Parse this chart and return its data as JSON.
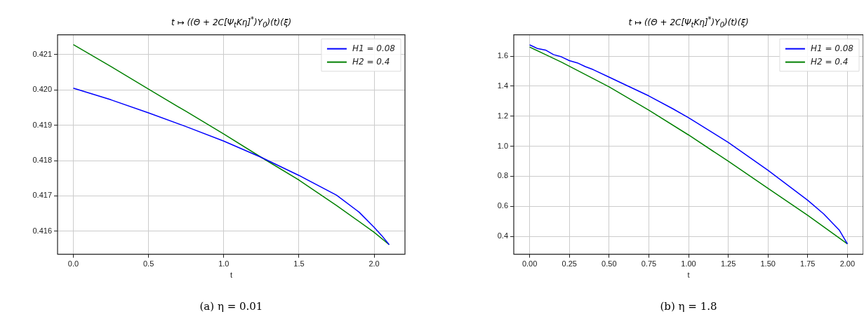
{
  "chart_data": [
    {
      "type": "line",
      "title": "t ↦ ((Θ + 2C[Ψ$_{t}$Kη]$^{*}$)Y$_{0}$)(t)(ξ)",
      "xlabel": "t",
      "annotations": [
        "(a) η = 0.01"
      ],
      "series": [
        {
          "name": "H1 = 0.08",
          "color": "#0000ff",
          "x": [
            0,
            0.25,
            0.5,
            0.75,
            1.0,
            1.25,
            1.5,
            1.75,
            1.9,
            2.0,
            2.05,
            2.1
          ],
          "values": [
            0.42005,
            0.41972,
            0.41935,
            0.41896,
            0.41855,
            0.41809,
            0.41758,
            0.41702,
            0.41654,
            0.41611,
            0.41588,
            0.41562
          ]
        },
        {
          "name": "H2 = 0.4",
          "color": "#008000",
          "x": [
            0,
            0.25,
            0.5,
            0.75,
            1.0,
            1.25,
            1.5,
            1.75,
            2.0,
            2.1
          ],
          "values": [
            0.42128,
            0.42066,
            0.42002,
            0.41939,
            0.41875,
            0.41809,
            0.41745,
            0.41673,
            0.41597,
            0.41562
          ]
        }
      ],
      "xlim": [
        -0.105,
        2.205
      ],
      "xticks": [
        {
          "value": 0,
          "label": "0.0"
        },
        {
          "value": 0.5,
          "label": "0.5"
        },
        {
          "value": 1,
          "label": "1.0"
        },
        {
          "value": 1.5,
          "label": "1.5"
        },
        {
          "value": 2,
          "label": "2.0"
        }
      ],
      "ylim": [
        0.41535,
        0.42156
      ],
      "yticks": [
        0.416,
        0.417,
        0.418,
        0.419,
        {
          "value": 0.42,
          "label": "0.420"
        },
        0.421
      ],
      "grid": true,
      "legend": "top right",
      "marker": "none",
      "line_style": "solid"
    },
    {
      "type": "line",
      "title": "t ↦ ((Θ + 2C[Ψ$_{t}$Kη]$^{*}$)Y$_{0}$)(t)(ξ)",
      "xlabel": "t",
      "annotations": [
        "(b) η = 1.8"
      ],
      "series": [
        {
          "name": "H1 = 0.08",
          "color": "#0000ff",
          "x": [
            0,
            0.05,
            0.1,
            0.15,
            0.2,
            0.25,
            0.3,
            0.35,
            0.4,
            0.5,
            0.6,
            0.75,
            0.9,
            1.0,
            1.25,
            1.5,
            1.75,
            1.85,
            1.95,
            2.0
          ],
          "values": [
            1.675,
            1.65,
            1.64,
            1.61,
            1.595,
            1.57,
            1.555,
            1.53,
            1.51,
            1.46,
            1.41,
            1.335,
            1.25,
            1.19,
            1.025,
            0.84,
            0.64,
            0.55,
            0.44,
            0.35
          ]
        },
        {
          "name": "H2 = 0.4",
          "color": "#008000",
          "x": [
            0,
            0.1,
            0.2,
            0.3,
            0.4,
            0.5,
            0.75,
            1.0,
            1.25,
            1.5,
            1.75,
            2.0
          ],
          "values": [
            1.66,
            1.61,
            1.56,
            1.505,
            1.45,
            1.395,
            1.24,
            1.075,
            0.9,
            0.72,
            0.54,
            0.35
          ]
        }
      ],
      "xlim": [
        -0.1,
        2.1
      ],
      "xticks": [
        {
          "value": 0,
          "label": "0.00"
        },
        {
          "value": 0.25,
          "label": "0.25"
        },
        {
          "value": 0.5,
          "label": "0.50"
        },
        {
          "value": 0.75,
          "label": "0.75"
        },
        {
          "value": 1,
          "label": "1.00"
        },
        {
          "value": 1.25,
          "label": "1.25"
        },
        {
          "value": 1.5,
          "label": "1.50"
        },
        {
          "value": 1.75,
          "label": "1.75"
        },
        {
          "value": 2,
          "label": "2.00"
        }
      ],
      "ylim": [
        0.281,
        1.742
      ],
      "yticks": [
        {
          "value": 0.4,
          "label": "0.4"
        },
        {
          "value": 0.6,
          "label": "0.6"
        },
        {
          "value": 0.8,
          "label": "0.8"
        },
        {
          "value": 1,
          "label": "1.0"
        },
        {
          "value": 1.2,
          "label": "1.2"
        },
        {
          "value": 1.4,
          "label": "1.4"
        },
        {
          "value": 1.6,
          "label": "1.6"
        }
      ],
      "grid": true,
      "legend": "top right",
      "marker": "none",
      "line_style": "solid"
    }
  ]
}
